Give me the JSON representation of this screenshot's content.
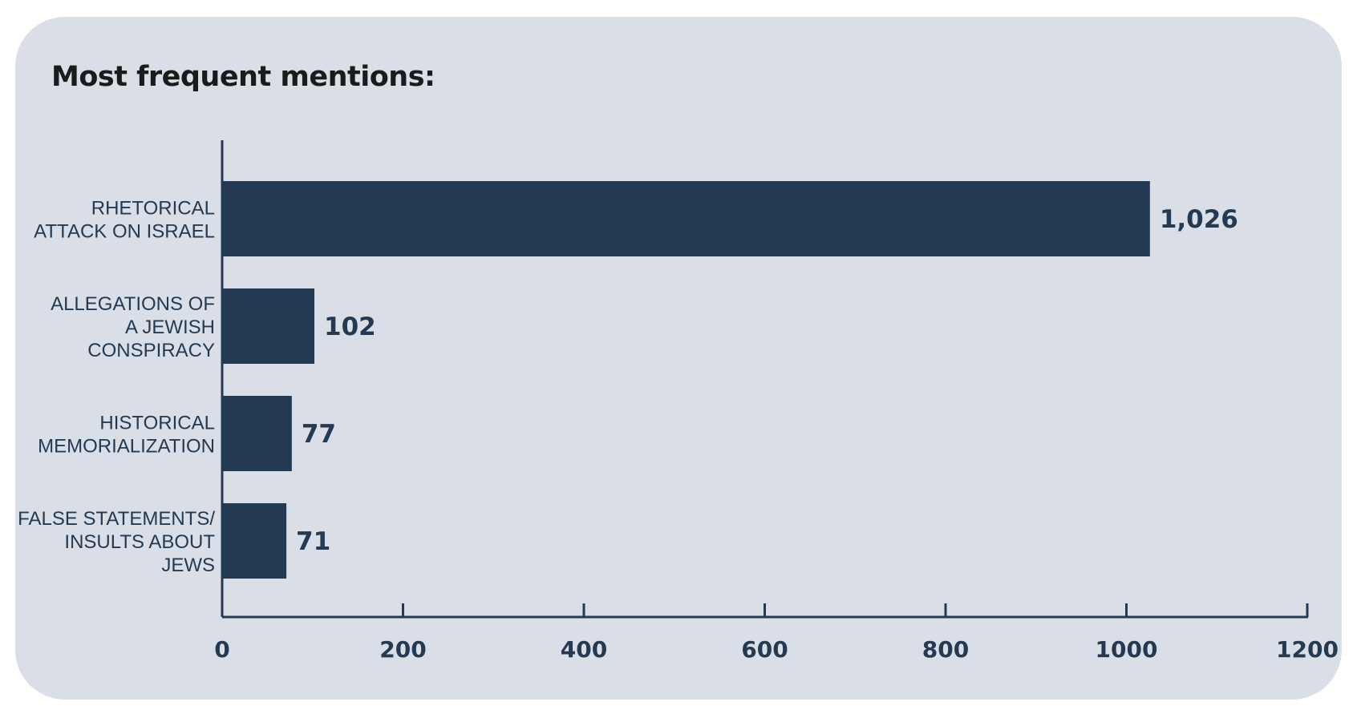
{
  "title": "Most frequent mentions:",
  "colors": {
    "background": "#d9dee7",
    "bar": "#243a52",
    "text": "#243a52",
    "title": "#1b1b1b"
  },
  "chart_data": {
    "type": "bar",
    "orientation": "horizontal",
    "categories": [
      [
        "RHETORICAL",
        "ATTACK ON ISRAEL"
      ],
      [
        "ALLEGATIONS OF",
        "A JEWISH",
        "CONSPIRACY"
      ],
      [
        "HISTORICAL",
        "MEMORIALIZATION"
      ],
      [
        "FALSE STATEMENTS/",
        "INSULTS ABOUT",
        "JEWS"
      ]
    ],
    "values": [
      1026,
      102,
      77,
      71
    ],
    "value_labels": [
      "1,026",
      "102",
      "77",
      "71"
    ],
    "xlim": [
      0,
      1200
    ],
    "xticks": [
      "0",
      "200",
      "400",
      "600",
      "800",
      "1000",
      "1200"
    ],
    "grid": false,
    "legend": "none"
  }
}
